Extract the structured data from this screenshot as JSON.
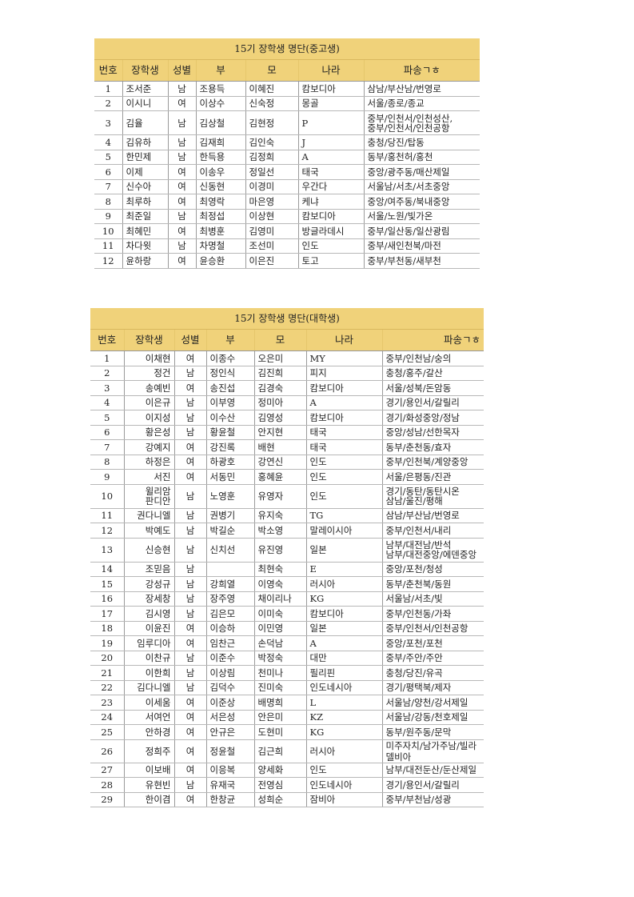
{
  "tables": [
    {
      "title": "15기 장학생 명단(중고생)",
      "headers": [
        "번호",
        "장학생",
        "성별",
        "부",
        "모",
        "나라",
        "파송ㄱㅎ"
      ],
      "rows": [
        [
          "1",
          "조서준",
          "남",
          "조용득",
          "이혜진",
          "캄보디아",
          "삼남/부산남/번영로"
        ],
        [
          "2",
          "이시니",
          "여",
          "이상수",
          "신숙정",
          "몽골",
          "서울/종로/종교"
        ],
        [
          "3",
          "김율",
          "남",
          "김상철",
          "김현정",
          "P",
          "중부/인천서/인천성산,\n중부/인천서/인천공항"
        ],
        [
          "4",
          "김유하",
          "남",
          "김재희",
          "김인숙",
          "J",
          "충청/당진/탑동"
        ],
        [
          "5",
          "한민제",
          "남",
          "한득용",
          "김정희",
          "A",
          "동부/홍천허/홍천"
        ],
        [
          "6",
          "이제",
          "여",
          "이송우",
          "정일선",
          "태국",
          "중앙/광주동/매산제일"
        ],
        [
          "7",
          "신수아",
          "여",
          "신동현",
          "이경미",
          "우간다",
          "서울남/서초/서초중앙"
        ],
        [
          "8",
          "최루하",
          "여",
          "최영락",
          "마은영",
          "케냐",
          "중앙/여주동/북내중앙"
        ],
        [
          "9",
          "최준일",
          "남",
          "최정섭",
          "이상현",
          "캄보디아",
          "서울/노원/빛가온"
        ],
        [
          "10",
          "최혜민",
          "여",
          "최병훈",
          "김영미",
          "방글라데시",
          "중부/일산동/일산광림"
        ],
        [
          "11",
          "차다윗",
          "남",
          "차명철",
          "조선미",
          "인도",
          "중부/새인천북/마전"
        ],
        [
          "12",
          "윤하랑",
          "여",
          "윤승환",
          "이은진",
          "토고",
          "중부/부천동/새부천"
        ]
      ]
    },
    {
      "title": "15기 장학생 명단(대학생)",
      "headers": [
        "번호",
        "장학생",
        "성별",
        "부",
        "모",
        "나라",
        "파송ㄱㅎ"
      ],
      "rows": [
        [
          "1",
          "이채현",
          "여",
          "이종수",
          "오은미",
          "MY",
          "중부/인천남/숭의"
        ],
        [
          "2",
          "정건",
          "남",
          "정인식",
          "김진희",
          "피지",
          "충청/홍주/갈산"
        ],
        [
          "3",
          "송예빈",
          "여",
          "송진섭",
          "김경숙",
          "캄보디아",
          "서울/성북/돈암동"
        ],
        [
          "4",
          "이은규",
          "남",
          "이부영",
          "정미아",
          "A",
          "경기/용인서/갈릴리"
        ],
        [
          "5",
          "이지성",
          "남",
          "이수산",
          "김영성",
          "캄보디아",
          "경기/화성중앙/정남"
        ],
        [
          "6",
          "황은성",
          "남",
          "황윤철",
          "안지현",
          "태국",
          "중앙/성남/선한목자"
        ],
        [
          "7",
          "강예지",
          "여",
          "강진록",
          "배현",
          "태국",
          "동부/춘천동/효자"
        ],
        [
          "8",
          "하정은",
          "여",
          "하광호",
          "강연신",
          "인도",
          "중부/인천북/계양중앙"
        ],
        [
          "9",
          "서진",
          "여",
          "서동민",
          "홍혜윤",
          "인도",
          "서울/은평동/진관"
        ],
        [
          "10",
          "윌리암\n판디안",
          "남",
          "노영훈",
          "유영자",
          "인도",
          "경기/동탄/동탄시온\n삼남/울진/평해"
        ],
        [
          "11",
          "권다니엘",
          "남",
          "권병기",
          "유지숙",
          "TG",
          "삼남/부산남/번영로"
        ],
        [
          "12",
          "박예도",
          "남",
          "박길순",
          "박소영",
          "말레이시아",
          "중부/인천서/내리"
        ],
        [
          "13",
          "신승현",
          "남",
          "신치선",
          "유진영",
          "일본",
          "남부/대전남/반석\n남부/대전중앙/에덴중앙"
        ],
        [
          "14",
          "조믿음",
          "남",
          "",
          "최현숙",
          "E",
          "중앙/포천/청성"
        ],
        [
          "15",
          "강성규",
          "남",
          "강희열",
          "이영숙",
          "러시아",
          "동부/춘천북/동원"
        ],
        [
          "16",
          "장세창",
          "남",
          "장주영",
          "채이리나",
          "KG",
          "서울남/서초/빛"
        ],
        [
          "17",
          "김시영",
          "남",
          "김은모",
          "이미숙",
          "캄보디아",
          "중부/인천동/가좌"
        ],
        [
          "18",
          "이윤진",
          "여",
          "이승하",
          "이민영",
          "일본",
          "중부/인천서/인천공항"
        ],
        [
          "19",
          "임루디아",
          "여",
          "임찬근",
          "손덕남",
          "A",
          "중앙/포천/포천"
        ],
        [
          "20",
          "이찬규",
          "남",
          "이준수",
          "박정숙",
          "대만",
          "중부/주안/주안"
        ],
        [
          "21",
          "이한희",
          "남",
          "이상림",
          "천미나",
          "필리핀",
          "충청/당진/유곡"
        ],
        [
          "22",
          "김다니엘",
          "남",
          "김덕수",
          "진미숙",
          "인도네시아",
          "경기/평택북/제자"
        ],
        [
          "23",
          "이세움",
          "여",
          "이준상",
          "배명희",
          "L",
          "서울남/양천/강서제일"
        ],
        [
          "24",
          "서여언",
          "여",
          "서은성",
          "안은미",
          "KZ",
          "서울남/강동/천호제일"
        ],
        [
          "25",
          "안하경",
          "여",
          "안규은",
          "도현미",
          "KG",
          "동부/원주동/문막"
        ],
        [
          "26",
          "정희주",
          "여",
          "정윤철",
          "김근희",
          "러시아",
          "미주자치/남가주남/빌라델비아"
        ],
        [
          "27",
          "이보배",
          "여",
          "이응복",
          "양세화",
          "인도",
          "남부/대전둔산/둔산제일"
        ],
        [
          "28",
          "유현빈",
          "남",
          "유재국",
          "전영심",
          "인도네시아",
          "경기/용인서/갈릴리"
        ],
        [
          "29",
          "한이겸",
          "여",
          "한창균",
          "성희순",
          "잠비아",
          "중부/부천남/성광"
        ]
      ]
    }
  ]
}
